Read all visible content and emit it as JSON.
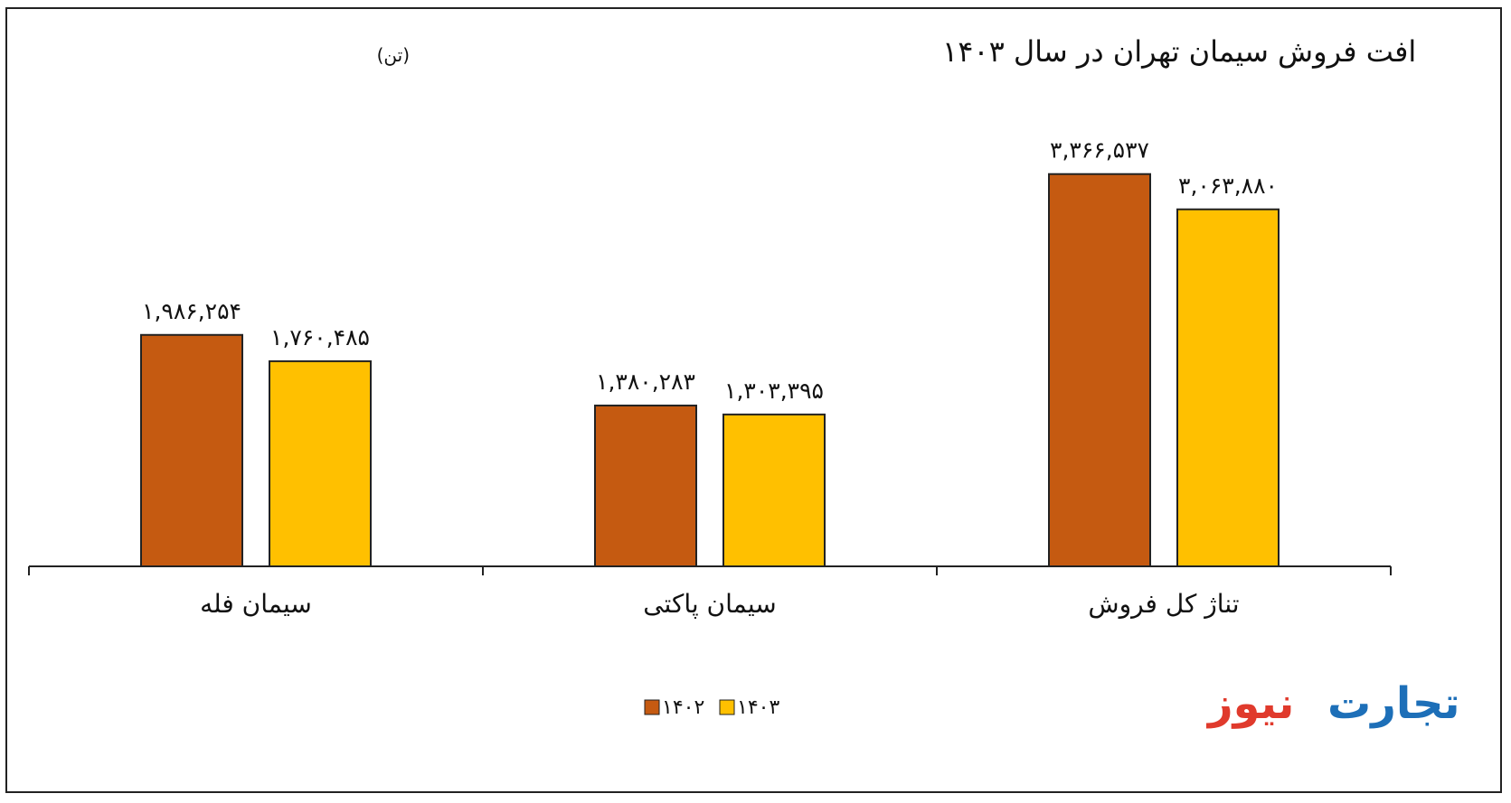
{
  "chart_data": {
    "type": "bar",
    "title": "افت فروش سیمان تهران در سال ۱۴۰۳",
    "subtitle": "(تن)",
    "categories": [
      "سیمان فله",
      "سیمان پاکتی",
      "تناژ کل فروش"
    ],
    "series": [
      {
        "name": "۱۴۰۲",
        "values": [
          1986254,
          1380283,
          3366537
        ],
        "labels": [
          "۱,۹۸۶,۲۵۴",
          "۱,۳۸۰,۲۸۳",
          "۳,۳۶۶,۵۳۷"
        ],
        "color": "#C55A11"
      },
      {
        "name": "۱۴۰۳",
        "values": [
          1760485,
          1303395,
          3063880
        ],
        "labels": [
          "۱,۷۶۰,۴۸۵",
          "۱,۳۰۳,۳۹۵",
          "۳,۰۶۳,۸۸۰"
        ],
        "color": "#FFC000"
      }
    ],
    "ylim": [
      0,
      4000000
    ],
    "grid": false,
    "legend_position": "bottom"
  },
  "brand": {
    "red_part": "نیوز",
    "blue_part": "تجارت",
    "red_color": "#E03A2C",
    "blue_color": "#1D6FB8"
  }
}
